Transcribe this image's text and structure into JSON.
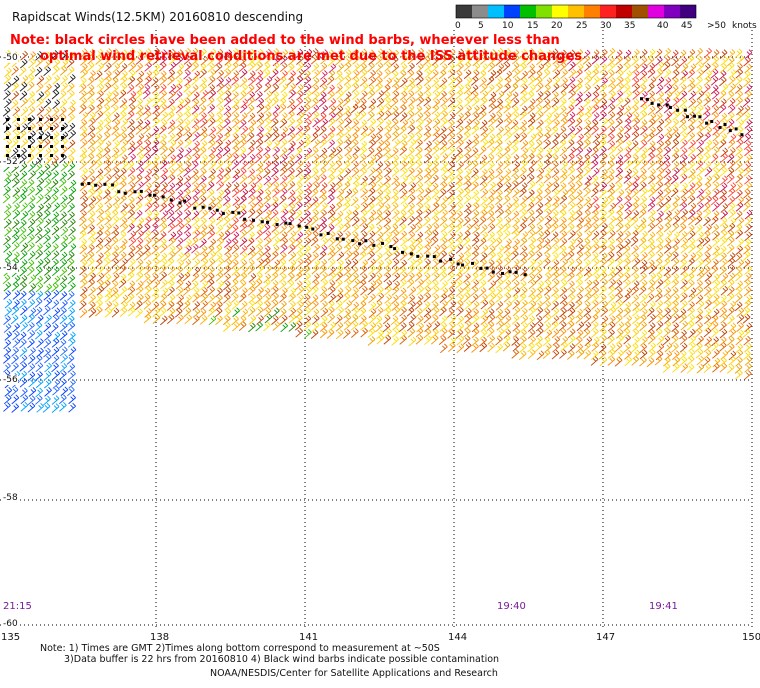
{
  "title": "Rapidscat Winds(12.5KM) 20160810 descending",
  "note": {
    "line1": "Note: black circles have been added to the wind barbs, wherever less than",
    "line2": "optimal wind retrieval conditions are met due to the ISS attitude changes"
  },
  "colorscale": {
    "labels": [
      "0",
      "5",
      "10",
      "15",
      "20",
      "25",
      "30",
      "35",
      "40",
      "45",
      ">50",
      "knots"
    ],
    "colors": [
      "#3a3a3a",
      "#8c8c8c",
      "#00bfff",
      "#0040ff",
      "#00c000",
      "#80e000",
      "#ffff00",
      "#ffc000",
      "#ff8000",
      "#ff2020",
      "#c00000",
      "#a05000",
      "#e000e0",
      "#8000c0",
      "#400080"
    ]
  },
  "axes": {
    "lat_labels": [
      "-50",
      "-52",
      "-54",
      "-56",
      "-58",
      "-60"
    ],
    "lon_labels": [
      "135",
      "138",
      "141",
      "144",
      "147",
      "150"
    ],
    "time_labels": [
      "21:15",
      "19:40",
      "19:41"
    ]
  },
  "footer": {
    "line1": "Note: 1) Times are GMT 2)Times along bottom correspond to measurement at ~50S",
    "line2": "3)Data buffer is 22 hrs from 20160810 4) Black wind barbs indicate possible contamination",
    "line3": "NOAA/NESDIS/Center for Satellite Applications and Research"
  }
}
